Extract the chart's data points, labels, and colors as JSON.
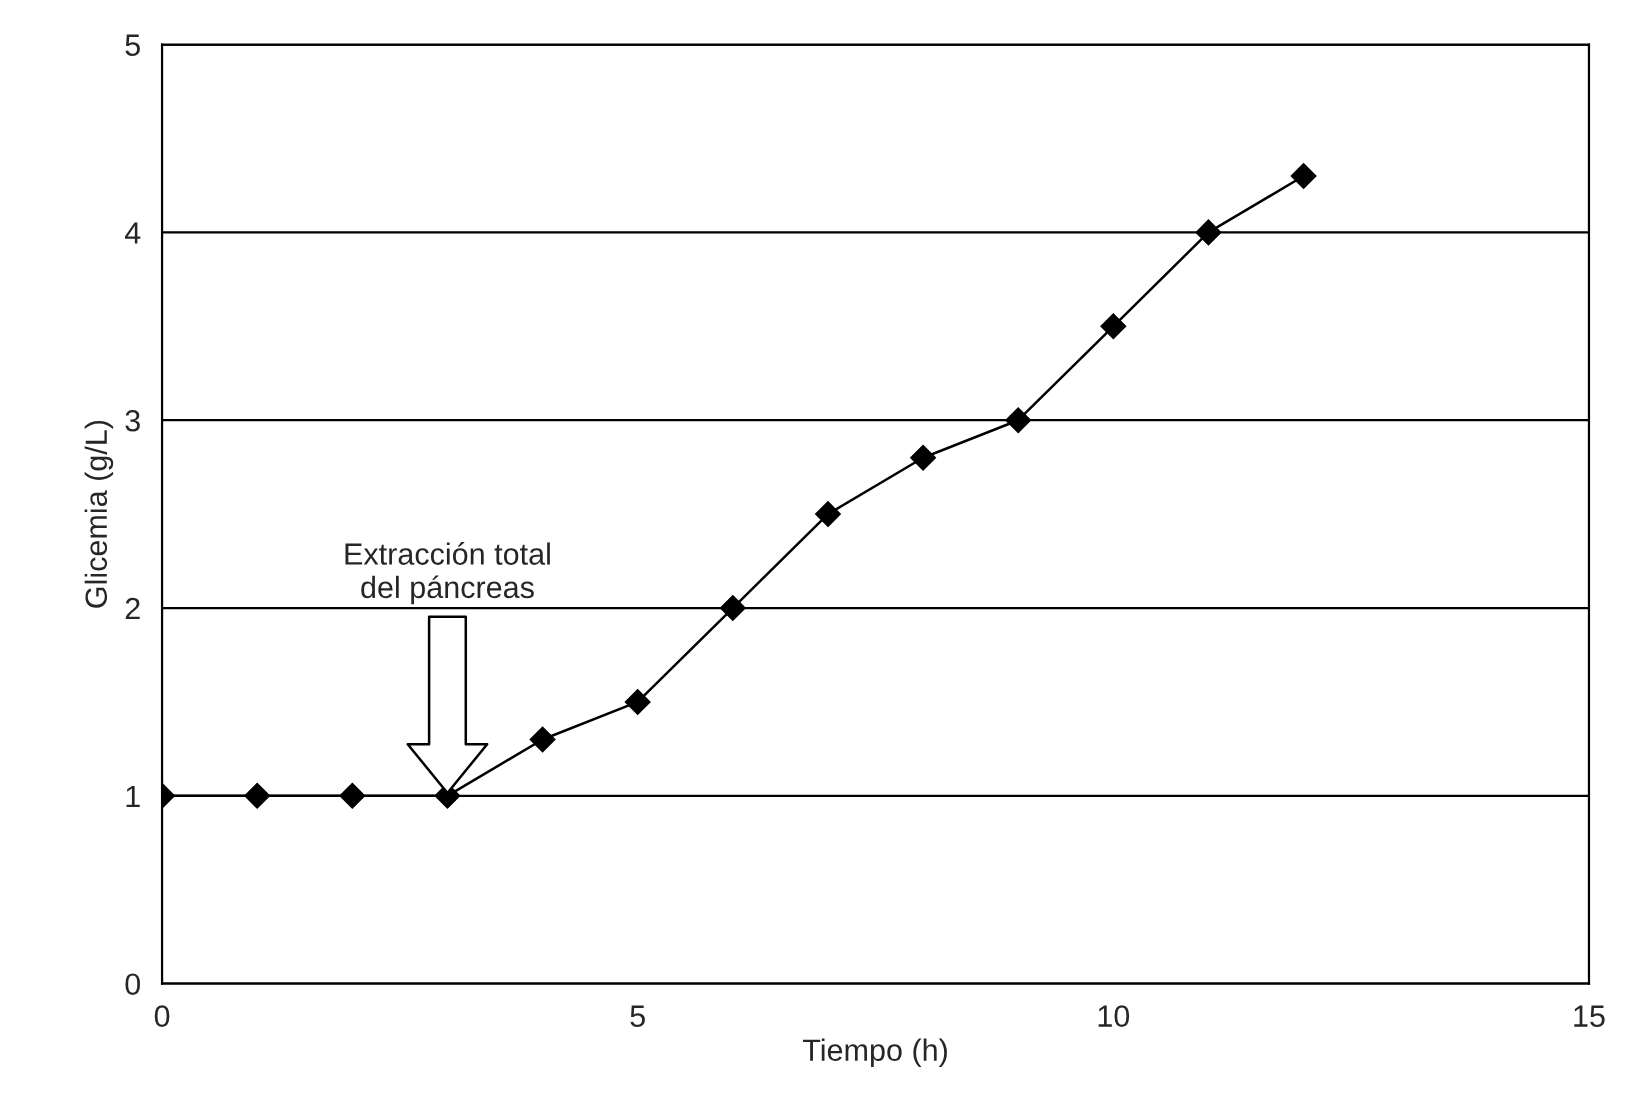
{
  "chart_data": {
    "type": "line",
    "xlabel": "Tiempo (h)",
    "ylabel": "Glicemia (g/L)",
    "x": [
      0,
      1,
      2,
      3,
      4,
      5,
      6,
      7,
      8,
      9,
      10,
      11,
      12
    ],
    "series": [
      {
        "color": "#000000",
        "values": [
          1,
          1,
          1,
          1,
          1.3,
          1.5,
          2,
          2.5,
          2.8,
          3,
          3.5,
          4,
          4.3
        ]
      }
    ],
    "xlim": [
      0,
      15
    ],
    "xticks": [
      0,
      5,
      10,
      15
    ],
    "ylim": [
      0,
      5
    ],
    "yticks": [
      0,
      1,
      2,
      3,
      4,
      5
    ],
    "grid": "y",
    "marker": "diamond",
    "line_style": "solid",
    "annotations": [
      "Extracción total\ndel páncreas"
    ]
  }
}
